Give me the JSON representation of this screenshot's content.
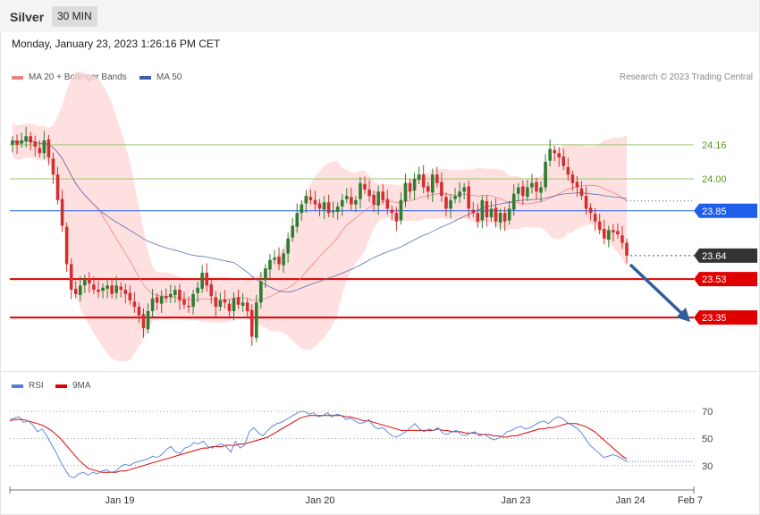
{
  "header": {
    "instrument": "Silver",
    "timeframe_button": "30 MIN",
    "timestamp": "Monday, January 23, 2023 1:26:16 PM CET"
  },
  "legend_main": [
    {
      "label": "MA 20 + Bollinger Bands",
      "color": "#f08080"
    },
    {
      "label": "MA 50",
      "color": "#3b5fa8"
    }
  ],
  "source_text": "Research © 2023 Trading Central",
  "legend_rsi": [
    {
      "label": "RSI",
      "color": "#4f7fdb"
    },
    {
      "label": "9MA",
      "color": "#e00000"
    }
  ],
  "colors": {
    "up": "#2e7d32",
    "down": "#d32f2f",
    "band_fill": "#ffd6d6",
    "ma20": "#f08080",
    "ma50": "#5870b8",
    "green_level": "#9bc46c",
    "blue_level": "#1e5ee8",
    "red_level": "#e00000",
    "current": "#333333",
    "arrow": "#2f5d9b"
  },
  "chart_data": [
    {
      "type": "candlestick",
      "title": "Silver 30 MIN",
      "ylim": [
        23.12,
        24.44
      ],
      "x_ticks": [
        "Jan 19",
        "Jan 20",
        "Jan 23",
        "Jan 24",
        "Feb 7"
      ],
      "levels": [
        {
          "value": 24.16,
          "label": "24.16",
          "kind": "resistance"
        },
        {
          "value": 24.0,
          "label": "24.00",
          "kind": "resistance"
        },
        {
          "value": 23.85,
          "label": "23.85",
          "kind": "pivot"
        },
        {
          "value": 23.64,
          "label": "23.64",
          "kind": "current"
        },
        {
          "value": 23.53,
          "label": "23.53",
          "kind": "support"
        },
        {
          "value": 23.35,
          "label": "23.35",
          "kind": "support"
        }
      ],
      "close": [
        24.18,
        24.16,
        24.18,
        24.2,
        24.17,
        24.15,
        24.12,
        24.18,
        24.1,
        24.02,
        23.9,
        23.78,
        23.6,
        23.48,
        23.46,
        23.5,
        23.53,
        23.51,
        23.48,
        23.47,
        23.49,
        23.5,
        23.46,
        23.5,
        23.48,
        23.46,
        23.43,
        23.4,
        23.36,
        23.3,
        23.38,
        23.44,
        23.42,
        23.45,
        23.44,
        23.46,
        23.48,
        23.43,
        23.41,
        23.4,
        23.46,
        23.49,
        23.56,
        23.5,
        23.45,
        23.4,
        23.43,
        23.42,
        23.38,
        23.44,
        23.41,
        23.42,
        23.38,
        23.26,
        23.42,
        23.52,
        23.58,
        23.62,
        23.63,
        23.6,
        23.65,
        23.72,
        23.78,
        23.84,
        23.88,
        23.92,
        23.9,
        23.88,
        23.86,
        23.89,
        23.84,
        23.85,
        23.87,
        23.9,
        23.92,
        23.88,
        23.9,
        23.98,
        23.95,
        23.92,
        23.88,
        23.94,
        23.9,
        23.86,
        23.84,
        23.8,
        23.9,
        23.98,
        23.94,
        24.0,
        24.02,
        23.96,
        23.94,
        24.02,
        23.98,
        23.92,
        23.86,
        23.9,
        23.92,
        23.94,
        23.96,
        23.86,
        23.84,
        23.8,
        23.9,
        23.82,
        23.86,
        23.8,
        23.84,
        23.8,
        23.86,
        23.93,
        23.96,
        23.92,
        23.96,
        23.98,
        23.94,
        23.96,
        24.08,
        24.14,
        24.12,
        24.1,
        24.06,
        24.02,
        23.98,
        23.96,
        23.92,
        23.86,
        23.84,
        23.8,
        23.76,
        23.72,
        23.76,
        23.75,
        23.74,
        23.7,
        23.64
      ],
      "open_offsets_note": "open derived from previous close",
      "series": [
        {
          "name": "MA 20 + Bollinger Bands"
        },
        {
          "name": "MA 50"
        }
      ]
    },
    {
      "type": "line",
      "title": "RSI",
      "ylim": [
        14,
        80
      ],
      "y_ticks": [
        70,
        50,
        30
      ],
      "series": [
        {
          "name": "RSI",
          "values": [
            64,
            65,
            66,
            62,
            63,
            60,
            55,
            57,
            52,
            46,
            40,
            33,
            27,
            22,
            21,
            24,
            25,
            23,
            25,
            24,
            26,
            27,
            25,
            26,
            29,
            31,
            30,
            32,
            33,
            34,
            35,
            37,
            36,
            38,
            42,
            44,
            40,
            39,
            43,
            44,
            47,
            46,
            48,
            44,
            43,
            45,
            46,
            44,
            40,
            48,
            43,
            45,
            55,
            58,
            54,
            52,
            56,
            59,
            61,
            62,
            64,
            66,
            68,
            70,
            70,
            68,
            69,
            66,
            67,
            69,
            66,
            68,
            67,
            64,
            65,
            63,
            61,
            62,
            64,
            59,
            57,
            58,
            55,
            52,
            51,
            53,
            55,
            58,
            61,
            57,
            55,
            57,
            56,
            58,
            54,
            53,
            55,
            56,
            53,
            52,
            54,
            55,
            52,
            53,
            51,
            49,
            50,
            52,
            55,
            56,
            58,
            59,
            57,
            58,
            60,
            62,
            63,
            61,
            64,
            66,
            65,
            62,
            60,
            58,
            55,
            50,
            45,
            42,
            39,
            36,
            37,
            38,
            37,
            35,
            33
          ]
        },
        {
          "name": "9MA",
          "values": [
            63,
            64,
            64,
            64,
            63,
            62,
            61,
            60,
            58,
            56,
            53,
            50,
            46,
            42,
            38,
            34,
            31,
            28,
            27,
            26,
            25,
            25,
            25,
            25,
            26,
            26,
            27,
            28,
            29,
            30,
            31,
            32,
            33,
            34,
            35,
            36,
            37,
            38,
            39,
            40,
            41,
            42,
            43,
            43,
            44,
            44,
            44,
            45,
            45,
            45,
            46,
            46,
            47,
            48,
            49,
            50,
            51,
            53,
            55,
            57,
            59,
            61,
            63,
            65,
            66,
            67,
            67,
            67,
            67,
            67,
            67,
            67,
            67,
            66,
            66,
            65,
            64,
            63,
            63,
            62,
            61,
            60,
            59,
            58,
            57,
            56,
            56,
            56,
            56,
            56,
            56,
            56,
            56,
            57,
            56,
            56,
            55,
            55,
            55,
            54,
            54,
            54,
            53,
            53,
            53,
            52,
            52,
            51,
            51,
            52,
            52,
            53,
            54,
            55,
            56,
            57,
            57,
            58,
            58,
            59,
            60,
            61,
            61,
            61,
            60,
            59,
            57,
            55,
            52,
            49,
            46,
            43,
            40,
            37,
            35
          ]
        }
      ]
    }
  ]
}
